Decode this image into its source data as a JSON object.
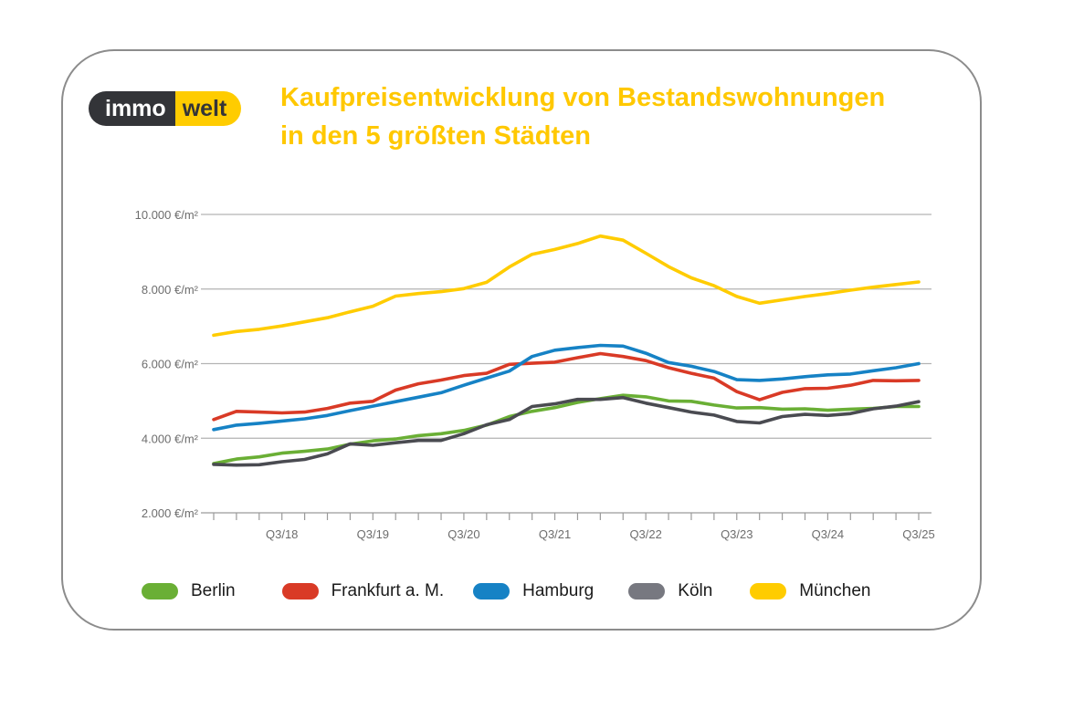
{
  "logo": {
    "left": "immo",
    "right": "welt"
  },
  "title": {
    "line1": "Kaufpreisentwicklung von Bestandswohnungen",
    "line2": "in den 5 größten Städten"
  },
  "chart_data": {
    "type": "line",
    "title": "Kaufpreisentwicklung von Bestandswohnungen in den 5 größten Städten",
    "xlabel": "",
    "ylabel": "",
    "ylim": [
      2000,
      10000
    ],
    "yticks": [
      2000,
      4000,
      6000,
      8000,
      10000
    ],
    "ytick_labels": [
      "2.000 €/m²",
      "4.000 €/m²",
      "6.000 €/m²",
      "8.000 €/m²",
      "10.000 €/m²"
    ],
    "xtick_labels": [
      {
        "index": 3,
        "label": "Q3/18"
      },
      {
        "index": 7,
        "label": "Q3/19"
      },
      {
        "index": 11,
        "label": "Q3/20"
      },
      {
        "index": 15,
        "label": "Q3/21"
      },
      {
        "index": 19,
        "label": "Q3/22"
      },
      {
        "index": 23,
        "label": "Q3/23"
      },
      {
        "index": 27,
        "label": "Q3/24"
      },
      {
        "index": 31,
        "label": "Q3/25"
      }
    ],
    "points": 32,
    "grid": true,
    "legend_position": "bottom",
    "series": [
      {
        "name": "Berlin",
        "color": "#6aaf35",
        "values": [
          3320,
          3440,
          3500,
          3600,
          3650,
          3710,
          3840,
          3930,
          3980,
          4070,
          4120,
          4210,
          4350,
          4580,
          4720,
          4820,
          4960,
          5060,
          5150,
          5110,
          5000,
          4990,
          4890,
          4810,
          4820,
          4780,
          4790,
          4750,
          4780,
          4800,
          4850,
          4850
        ]
      },
      {
        "name": "Frankfurt a. M.",
        "color": "#d93a26",
        "values": [
          4500,
          4720,
          4700,
          4680,
          4700,
          4800,
          4940,
          4990,
          5290,
          5460,
          5560,
          5680,
          5740,
          5980,
          6010,
          6040,
          6160,
          6270,
          6190,
          6080,
          5890,
          5740,
          5610,
          5250,
          5030,
          5230,
          5330,
          5340,
          5420,
          5550,
          5540,
          5550
        ]
      },
      {
        "name": "Hamburg",
        "color": "#1682c5",
        "values": [
          4230,
          4350,
          4400,
          4460,
          4520,
          4610,
          4740,
          4860,
          4980,
          5100,
          5220,
          5420,
          5610,
          5800,
          6190,
          6360,
          6430,
          6490,
          6470,
          6280,
          6030,
          5930,
          5790,
          5570,
          5550,
          5590,
          5650,
          5700,
          5720,
          5810,
          5890,
          6000
        ]
      },
      {
        "name": "Köln",
        "color": "#4a4b51",
        "values": [
          3300,
          3280,
          3290,
          3370,
          3430,
          3580,
          3850,
          3810,
          3880,
          3940,
          3940,
          4120,
          4360,
          4500,
          4850,
          4920,
          5040,
          5040,
          5090,
          4940,
          4820,
          4700,
          4620,
          4450,
          4410,
          4580,
          4640,
          4610,
          4660,
          4790,
          4860,
          4980
        ]
      },
      {
        "name": "München",
        "color": "#ffcc00",
        "values": [
          6760,
          6860,
          6920,
          7010,
          7120,
          7230,
          7390,
          7540,
          7810,
          7880,
          7930,
          8010,
          8180,
          8590,
          8930,
          9060,
          9220,
          9420,
          9310,
          8960,
          8600,
          8300,
          8090,
          7800,
          7620,
          7710,
          7800,
          7880,
          7970,
          8050,
          8120,
          8190
        ]
      }
    ]
  },
  "legend": [
    {
      "label": "Berlin",
      "color": "#6aaf35"
    },
    {
      "label": "Frankfurt a. M.",
      "color": "#d93a26"
    },
    {
      "label": "Hamburg",
      "color": "#1682c5"
    },
    {
      "label": "Köln",
      "color": "#777880"
    },
    {
      "label": "München",
      "color": "#ffcc00"
    }
  ]
}
